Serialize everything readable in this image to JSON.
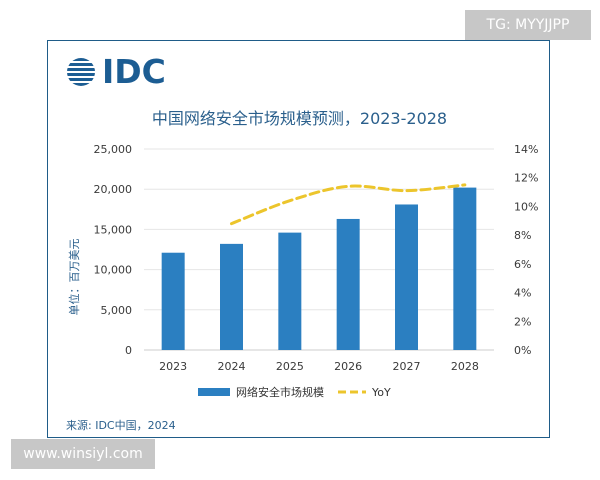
{
  "watermark_top": "TG: MYYJJPP",
  "watermark_bottom": "www.winsiyl.com",
  "logo_text": "IDC",
  "source": "来源: IDC中国，2024",
  "colors": {
    "bar": "#2b7fc1",
    "line": "#ecc52c",
    "axis_text": "#3a3a3a",
    "grid": "#e6e6e6"
  },
  "chart_data": {
    "type": "bar",
    "title": "中国网络安全市场规模预测，2023-2028",
    "categories": [
      "2023",
      "2024",
      "2025",
      "2026",
      "2027",
      "2028"
    ],
    "series": [
      {
        "name": "网络安全市场规模",
        "type": "bar",
        "axis": "left",
        "values": [
          12100,
          13200,
          14600,
          16300,
          18100,
          20200
        ]
      },
      {
        "name": "YoY",
        "type": "line",
        "style": "dashed",
        "axis": "right",
        "values": [
          null,
          0.088,
          0.104,
          0.114,
          0.111,
          0.115
        ]
      }
    ],
    "ylabel": "单位：百万美元",
    "ylim": [
      0,
      25000
    ],
    "yticks": [
      "0",
      "5,000",
      "10,000",
      "15,000",
      "20,000",
      "25,000"
    ],
    "y2lim": [
      0,
      0.14
    ],
    "y2ticks": [
      "0%",
      "2%",
      "4%",
      "6%",
      "8%",
      "10%",
      "12%",
      "14%"
    ],
    "legend": "bottom-center",
    "grid": true
  }
}
